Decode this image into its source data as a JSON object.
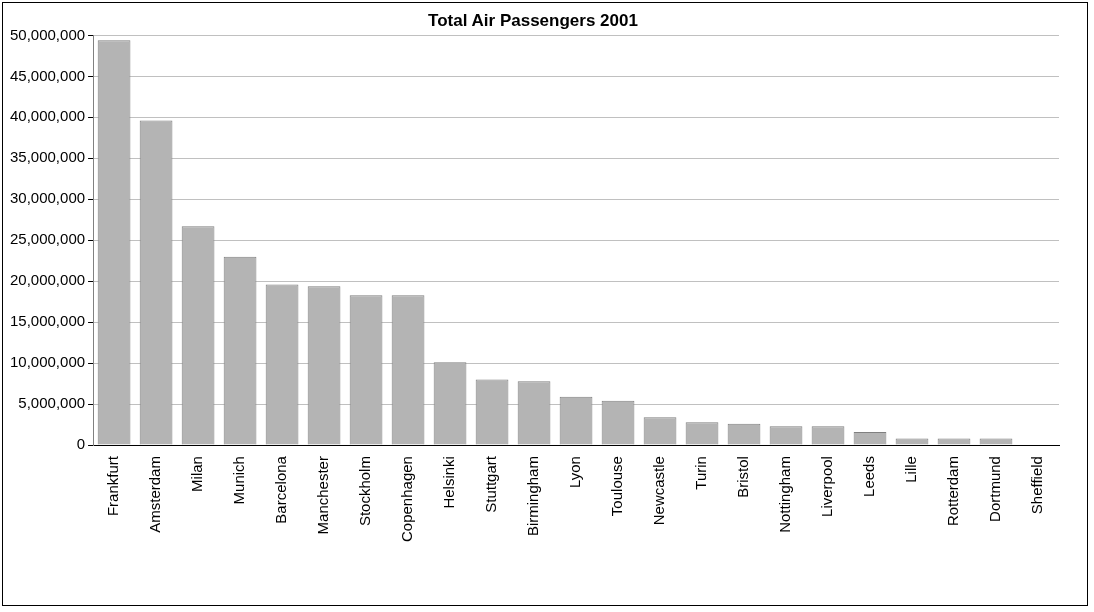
{
  "chart_data": {
    "type": "bar",
    "title": "Total Air Passengers 2001",
    "categories": [
      "Frankfurt",
      "Amsterdam",
      "Milan",
      "Munich",
      "Barcelona",
      "Manchester",
      "Stockholm",
      "Copenhagen",
      "Helsinki",
      "Stuttgart",
      "Birmingham",
      "Lyon",
      "Toulouse",
      "Newcastle",
      "Turin",
      "Bristol",
      "Nottingham",
      "Liverpool",
      "Leeds",
      "Lille",
      "Rotterdam",
      "Dortmund",
      "Sheffield"
    ],
    "values": [
      49400000,
      39600000,
      26700000,
      23000000,
      19600000,
      19400000,
      18300000,
      18300000,
      10100000,
      8000000,
      7800000,
      5900000,
      5400000,
      3400000,
      2800000,
      2600000,
      2300000,
      2300000,
      1600000,
      800000,
      800000,
      800000,
      0
    ],
    "color": "#b4b4b4",
    "ylim": [
      0,
      50000000
    ],
    "yticks": [
      0,
      {
        "value": 5000000,
        "label": "5,000,000"
      },
      {
        "value": 10000000,
        "label": "10,000,000"
      },
      {
        "value": 15000000,
        "label": "15,000,000"
      },
      {
        "value": 20000000,
        "label": "20,000,000"
      },
      {
        "value": 25000000,
        "label": "25,000,000"
      },
      {
        "value": 30000000,
        "label": "30,000,000"
      },
      {
        "value": 35000000,
        "label": "35,000,000"
      },
      {
        "value": 40000000,
        "label": "40,000,000"
      },
      {
        "value": 45000000,
        "label": "45,000,000"
      },
      {
        "value": 50000000,
        "label": "50,000,000"
      }
    ],
    "grid": "y",
    "legend": false
  }
}
